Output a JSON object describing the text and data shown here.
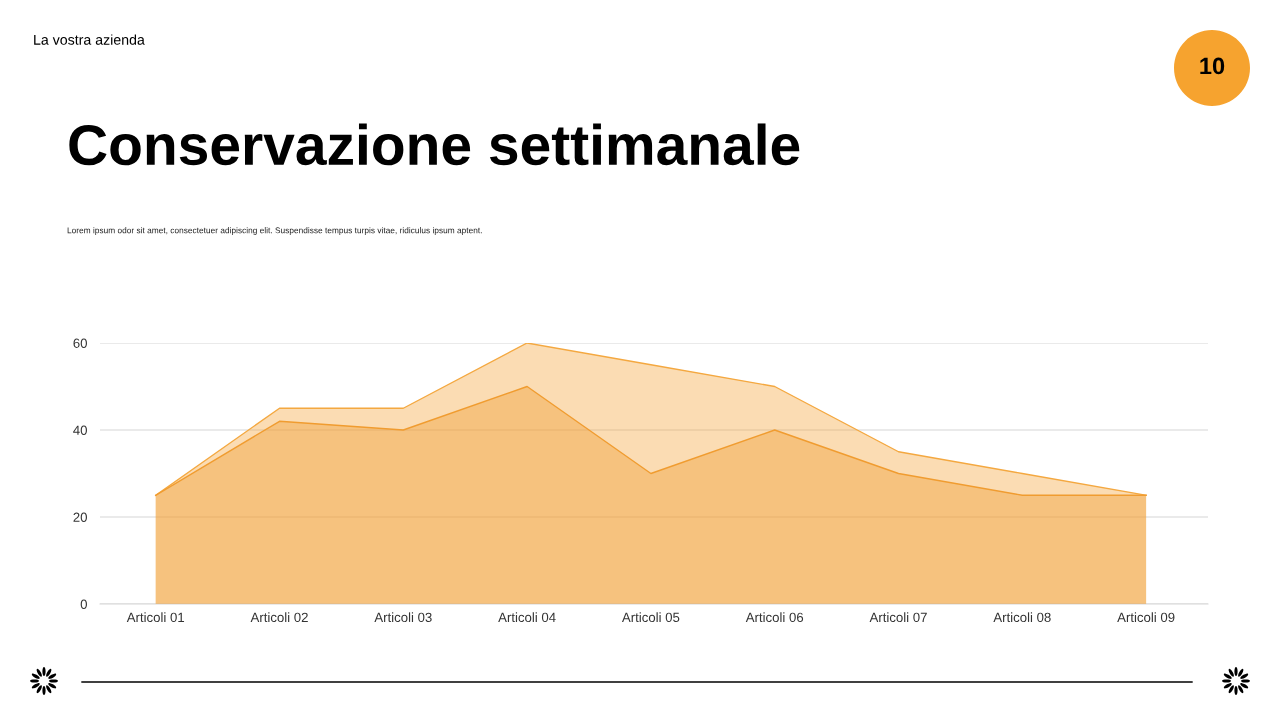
{
  "chart_data": {
    "type": "area",
    "title": "Conservazione settimanale",
    "subtitle": "Lorem ipsum odor sit amet, consectetuer adipiscing elit. Suspendisse tempus turpis vitae, ridiculus ipsum aptent.",
    "annotations": [
      "La vostra azienda",
      "10"
    ],
    "categories": [
      "Articoli 01",
      "Articoli 02",
      "Articoli 03",
      "Articoli 04",
      "Articoli 05",
      "Articoli 06",
      "Articoli 07",
      "Articoli 08",
      "Articoli 09"
    ],
    "series": [
      {
        "color": "#f4a840",
        "values": [
          25,
          45,
          45,
          60,
          55,
          50,
          35,
          30,
          25
        ]
      },
      {
        "color": "#f09c30",
        "values": [
          25,
          42,
          40,
          50,
          30,
          40,
          30,
          25,
          25
        ]
      }
    ],
    "ylim": [
      0,
      60
    ],
    "yticks": [
      0,
      20,
      40,
      60
    ],
    "grid": "y"
  }
}
